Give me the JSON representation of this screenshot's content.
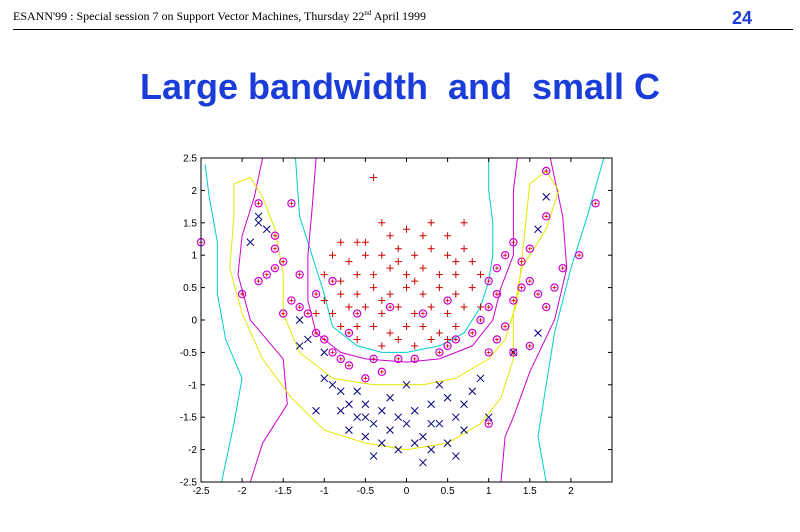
{
  "header": {
    "text_before_sup": "ESANN'99 :  Special session 7 on Support Vector Machines, Thursday 22",
    "superscript": "nd",
    "text_after_sup": " April 1999",
    "page_number": "24"
  },
  "title": "Large bandwidth  and  small C",
  "colors": {
    "title": "#1a3cd8",
    "class_plus": "#cc0000",
    "class_cross": "#00007a",
    "support_vector_circle": "#d000d0",
    "contour_cyan": "#00cccc",
    "contour_magenta": "#cc00cc",
    "contour_yellow": "#e6e600"
  },
  "chart_data": {
    "type": "scatter",
    "title": "",
    "xlabel": "",
    "ylabel": "",
    "xlim": [
      -2.5,
      2.5
    ],
    "ylim": [
      -2.5,
      2.5
    ],
    "x_ticks": [
      "-2.5",
      "-2",
      "-1.5",
      "-1",
      "-0.5",
      "0",
      "0.5",
      "1",
      "1.5",
      "2"
    ],
    "y_ticks": [
      "2.5",
      "2",
      "1.5",
      "1",
      "0.5",
      "0",
      "-0.5",
      "-1",
      "-1.5",
      "-2",
      "-2.5"
    ],
    "grid": false,
    "series": [
      {
        "marker": "plus",
        "points": [
          [
            -0.4,
            2.2
          ],
          [
            -0.3,
            1.5
          ],
          [
            -0.6,
            1.2
          ],
          [
            -0.2,
            1.3
          ],
          [
            0.0,
            1.4
          ],
          [
            0.2,
            1.3
          ],
          [
            0.5,
            1.3
          ],
          [
            0.7,
            1.5
          ],
          [
            -0.8,
            1.2
          ],
          [
            -0.9,
            1.0
          ],
          [
            -0.7,
            0.9
          ],
          [
            -0.5,
            1.0
          ],
          [
            -0.3,
            1.0
          ],
          [
            -0.1,
            1.1
          ],
          [
            0.1,
            1.0
          ],
          [
            0.3,
            1.1
          ],
          [
            0.5,
            1.0
          ],
          [
            0.7,
            1.1
          ],
          [
            0.8,
            0.9
          ],
          [
            -1.0,
            0.7
          ],
          [
            -0.8,
            0.6
          ],
          [
            -0.6,
            0.7
          ],
          [
            -0.4,
            0.7
          ],
          [
            -0.2,
            0.8
          ],
          [
            0.0,
            0.7
          ],
          [
            0.2,
            0.8
          ],
          [
            0.4,
            0.7
          ],
          [
            0.6,
            0.7
          ],
          [
            0.9,
            0.7
          ],
          [
            -1.0,
            0.3
          ],
          [
            -0.8,
            0.4
          ],
          [
            -0.6,
            0.4
          ],
          [
            -0.4,
            0.5
          ],
          [
            -0.2,
            0.4
          ],
          [
            0.0,
            0.5
          ],
          [
            0.2,
            0.4
          ],
          [
            0.4,
            0.5
          ],
          [
            0.6,
            0.4
          ],
          [
            0.8,
            0.5
          ],
          [
            -1.1,
            0.1
          ],
          [
            -0.9,
            0.1
          ],
          [
            -0.7,
            0.2
          ],
          [
            -0.5,
            0.2
          ],
          [
            -0.3,
            0.1
          ],
          [
            -0.1,
            0.2
          ],
          [
            0.1,
            0.1
          ],
          [
            0.3,
            0.2
          ],
          [
            0.5,
            0.1
          ],
          [
            0.7,
            0.2
          ],
          [
            0.9,
            0.2
          ],
          [
            -0.8,
            -0.1
          ],
          [
            -0.6,
            -0.1
          ],
          [
            -0.4,
            -0.1
          ],
          [
            -0.2,
            -0.2
          ],
          [
            0.0,
            -0.1
          ],
          [
            0.2,
            -0.1
          ],
          [
            0.4,
            -0.2
          ],
          [
            0.6,
            -0.1
          ],
          [
            -0.6,
            -0.3
          ],
          [
            -0.3,
            -0.4
          ],
          [
            -0.1,
            -0.3
          ],
          [
            0.1,
            -0.4
          ],
          [
            0.3,
            -0.3
          ],
          [
            0.5,
            -0.3
          ],
          [
            -0.5,
            1.2
          ],
          [
            0.3,
            1.5
          ],
          [
            -0.1,
            0.9
          ],
          [
            0.6,
            0.9
          ],
          [
            -0.3,
            0.3
          ],
          [
            0.1,
            0.6
          ]
        ]
      },
      {
        "marker": "cross",
        "points": [
          [
            -1.8,
            1.6
          ],
          [
            -1.9,
            1.2
          ],
          [
            -1.8,
            1.5
          ],
          [
            -1.7,
            1.4
          ],
          [
            -1.3,
            0.0
          ],
          [
            -1.2,
            -0.3
          ],
          [
            -1.3,
            -0.4
          ],
          [
            -1.0,
            -0.5
          ],
          [
            -1.0,
            -0.9
          ],
          [
            -0.9,
            -1.0
          ],
          [
            -0.8,
            -1.1
          ],
          [
            -0.7,
            -1.3
          ],
          [
            -1.1,
            -1.4
          ],
          [
            -0.8,
            -1.4
          ],
          [
            -0.6,
            -1.5
          ],
          [
            -0.5,
            -1.3
          ],
          [
            -0.4,
            -1.6
          ],
          [
            -0.3,
            -1.4
          ],
          [
            -0.2,
            -1.7
          ],
          [
            -0.1,
            -1.5
          ],
          [
            0.0,
            -1.6
          ],
          [
            0.1,
            -1.4
          ],
          [
            0.2,
            -1.8
          ],
          [
            0.3,
            -1.3
          ],
          [
            0.4,
            -1.6
          ],
          [
            0.5,
            -1.2
          ],
          [
            0.6,
            -1.5
          ],
          [
            0.7,
            -1.3
          ],
          [
            0.8,
            -1.1
          ],
          [
            0.9,
            -0.9
          ],
          [
            0.7,
            -1.7
          ],
          [
            0.5,
            -1.9
          ],
          [
            0.3,
            -2.0
          ],
          [
            0.1,
            -1.9
          ],
          [
            -0.1,
            -2.0
          ],
          [
            -0.3,
            -1.9
          ],
          [
            -0.5,
            -1.8
          ],
          [
            -0.7,
            -1.7
          ],
          [
            -0.4,
            -2.1
          ],
          [
            0.2,
            -2.2
          ],
          [
            0.6,
            -2.1
          ],
          [
            -0.2,
            -1.2
          ],
          [
            0.0,
            -1.0
          ],
          [
            0.4,
            -1.0
          ],
          [
            1.0,
            -1.5
          ],
          [
            1.3,
            -0.5
          ],
          [
            1.6,
            -0.2
          ],
          [
            1.6,
            1.4
          ],
          [
            1.7,
            1.9
          ],
          [
            -0.6,
            -1.1
          ],
          [
            0.3,
            -1.6
          ],
          [
            -0.5,
            -1.5
          ]
        ]
      },
      {
        "marker": "circle",
        "points": [
          [
            -2.5,
            1.2
          ],
          [
            -2.0,
            0.4
          ],
          [
            -1.8,
            0.6
          ],
          [
            -1.7,
            0.7
          ],
          [
            -1.6,
            0.8
          ],
          [
            -1.5,
            0.9
          ],
          [
            -1.4,
            0.3
          ],
          [
            -1.3,
            0.2
          ],
          [
            -1.2,
            0.1
          ],
          [
            -1.1,
            -0.2
          ],
          [
            -1.0,
            -0.3
          ],
          [
            -0.9,
            -0.5
          ],
          [
            -0.8,
            -0.6
          ],
          [
            -0.7,
            -0.7
          ],
          [
            -0.5,
            -0.9
          ],
          [
            -0.3,
            -0.8
          ],
          [
            -0.1,
            -0.6
          ],
          [
            0.1,
            -0.6
          ],
          [
            0.4,
            -0.5
          ],
          [
            0.6,
            -0.3
          ],
          [
            0.8,
            -0.2
          ],
          [
            0.9,
            0.0
          ],
          [
            1.0,
            0.2
          ],
          [
            1.1,
            0.4
          ],
          [
            1.0,
            0.6
          ],
          [
            1.1,
            0.8
          ],
          [
            1.2,
            1.0
          ],
          [
            1.3,
            1.2
          ],
          [
            1.4,
            0.9
          ],
          [
            1.5,
            0.6
          ],
          [
            1.6,
            0.4
          ],
          [
            1.7,
            0.2
          ],
          [
            1.8,
            0.5
          ],
          [
            1.9,
            0.8
          ],
          [
            2.1,
            1.0
          ],
          [
            2.3,
            1.8
          ],
          [
            1.7,
            2.3
          ],
          [
            1.7,
            1.6
          ],
          [
            1.5,
            1.1
          ],
          [
            1.4,
            0.5
          ],
          [
            1.3,
            0.3
          ],
          [
            1.2,
            -0.1
          ],
          [
            1.1,
            -0.3
          ],
          [
            1.0,
            -0.5
          ],
          [
            -1.8,
            1.8
          ],
          [
            -1.6,
            1.3
          ],
          [
            -1.6,
            1.1
          ],
          [
            -1.4,
            1.8
          ],
          [
            -1.3,
            0.7
          ],
          [
            -0.9,
            0.6
          ],
          [
            -0.7,
            -0.2
          ],
          [
            -0.6,
            0.1
          ],
          [
            -0.4,
            -0.6
          ],
          [
            -0.2,
            0.2
          ],
          [
            0.2,
            0.1
          ],
          [
            0.5,
            0.3
          ],
          [
            0.5,
            -0.4
          ],
          [
            1.3,
            -0.5
          ],
          [
            1.5,
            -0.4
          ],
          [
            1.0,
            -1.6
          ],
          [
            -1.5,
            0.1
          ],
          [
            -1.1,
            0.4
          ]
        ]
      }
    ],
    "contours": [
      {
        "color": "cyan",
        "segments": [
          [
            [
              -2.25,
              -2.5
            ],
            [
              -2.1,
              -1.6
            ],
            [
              -2.0,
              -0.9
            ],
            [
              -2.2,
              -0.3
            ],
            [
              -2.3,
              0.4
            ],
            [
              -2.3,
              1.2
            ],
            [
              -2.4,
              1.9
            ],
            [
              -2.45,
              2.4
            ]
          ],
          [
            [
              -1.35,
              2.5
            ],
            [
              -1.3,
              1.6
            ],
            [
              -1.15,
              1.0
            ],
            [
              -1.0,
              0.4
            ],
            [
              -0.9,
              -0.1
            ],
            [
              -0.6,
              -0.4
            ],
            [
              -0.3,
              -0.5
            ],
            [
              0.0,
              -0.5
            ],
            [
              0.4,
              -0.4
            ],
            [
              0.7,
              -0.2
            ],
            [
              0.9,
              0.2
            ],
            [
              1.0,
              0.6
            ],
            [
              1.05,
              1.0
            ],
            [
              1.05,
              1.5
            ],
            [
              1.0,
              2.0
            ],
            [
              1.0,
              2.5
            ]
          ],
          [
            [
              2.4,
              2.5
            ],
            [
              2.2,
              1.6
            ],
            [
              2.0,
              0.8
            ],
            [
              1.8,
              -0.2
            ],
            [
              1.7,
              -1.0
            ],
            [
              1.6,
              -1.8
            ],
            [
              1.7,
              -2.5
            ]
          ]
        ]
      },
      {
        "color": "magenta",
        "segments": [
          [
            [
              -1.9,
              -2.5
            ],
            [
              -1.75,
              -1.9
            ],
            [
              -1.45,
              -1.3
            ],
            [
              -1.5,
              -0.6
            ],
            [
              -1.9,
              0.0
            ],
            [
              -2.05,
              0.7
            ],
            [
              -2.0,
              1.3
            ],
            [
              -1.85,
              1.9
            ],
            [
              -1.75,
              2.5
            ]
          ],
          [
            [
              -1.1,
              2.5
            ],
            [
              -1.15,
              1.7
            ],
            [
              -1.2,
              1.0
            ],
            [
              -1.2,
              0.3
            ],
            [
              -1.1,
              -0.2
            ],
            [
              -0.8,
              -0.5
            ],
            [
              -0.5,
              -0.6
            ],
            [
              0.0,
              -0.65
            ],
            [
              0.4,
              -0.6
            ],
            [
              0.8,
              -0.4
            ],
            [
              1.05,
              0.0
            ],
            [
              1.15,
              0.5
            ],
            [
              1.3,
              1.0
            ],
            [
              1.3,
              1.5
            ],
            [
              1.3,
              2.0
            ],
            [
              1.35,
              2.5
            ]
          ],
          [
            [
              1.75,
              2.5
            ],
            [
              1.9,
              1.6
            ],
            [
              1.95,
              0.8
            ],
            [
              1.8,
              0.0
            ],
            [
              1.5,
              -0.8
            ],
            [
              1.3,
              -1.5
            ],
            [
              1.2,
              -1.8
            ],
            [
              1.15,
              -2.5
            ]
          ]
        ]
      },
      {
        "color": "yellow",
        "segments": [
          [
            [
              -2.1,
              1.6
            ],
            [
              -2.1,
              2.1
            ],
            [
              -1.9,
              2.2
            ],
            [
              -1.75,
              1.9
            ],
            [
              -1.6,
              1.4
            ],
            [
              -1.5,
              0.7
            ],
            [
              -1.5,
              0.1
            ],
            [
              -1.3,
              -0.5
            ],
            [
              -0.9,
              -0.9
            ],
            [
              -0.4,
              -1.0
            ],
            [
              0.2,
              -1.0
            ],
            [
              0.6,
              -0.9
            ],
            [
              1.0,
              -0.6
            ],
            [
              1.2,
              -0.3
            ],
            [
              1.35,
              0.3
            ],
            [
              1.4,
              0.9
            ],
            [
              1.45,
              1.5
            ],
            [
              1.5,
              2.1
            ],
            [
              1.7,
              2.3
            ],
            [
              1.85,
              2.0
            ],
            [
              1.7,
              1.4
            ],
            [
              1.4,
              0.8
            ],
            [
              1.3,
              0.1
            ],
            [
              1.3,
              -0.6
            ],
            [
              1.15,
              -1.2
            ],
            [
              0.9,
              -1.6
            ],
            [
              0.5,
              -1.9
            ],
            [
              0.0,
              -2.0
            ],
            [
              -0.5,
              -1.9
            ],
            [
              -1.0,
              -1.7
            ],
            [
              -1.4,
              -1.2
            ],
            [
              -1.75,
              -0.6
            ],
            [
              -2.0,
              0.1
            ],
            [
              -2.15,
              0.8
            ],
            [
              -2.1,
              1.6
            ]
          ]
        ]
      }
    ]
  }
}
